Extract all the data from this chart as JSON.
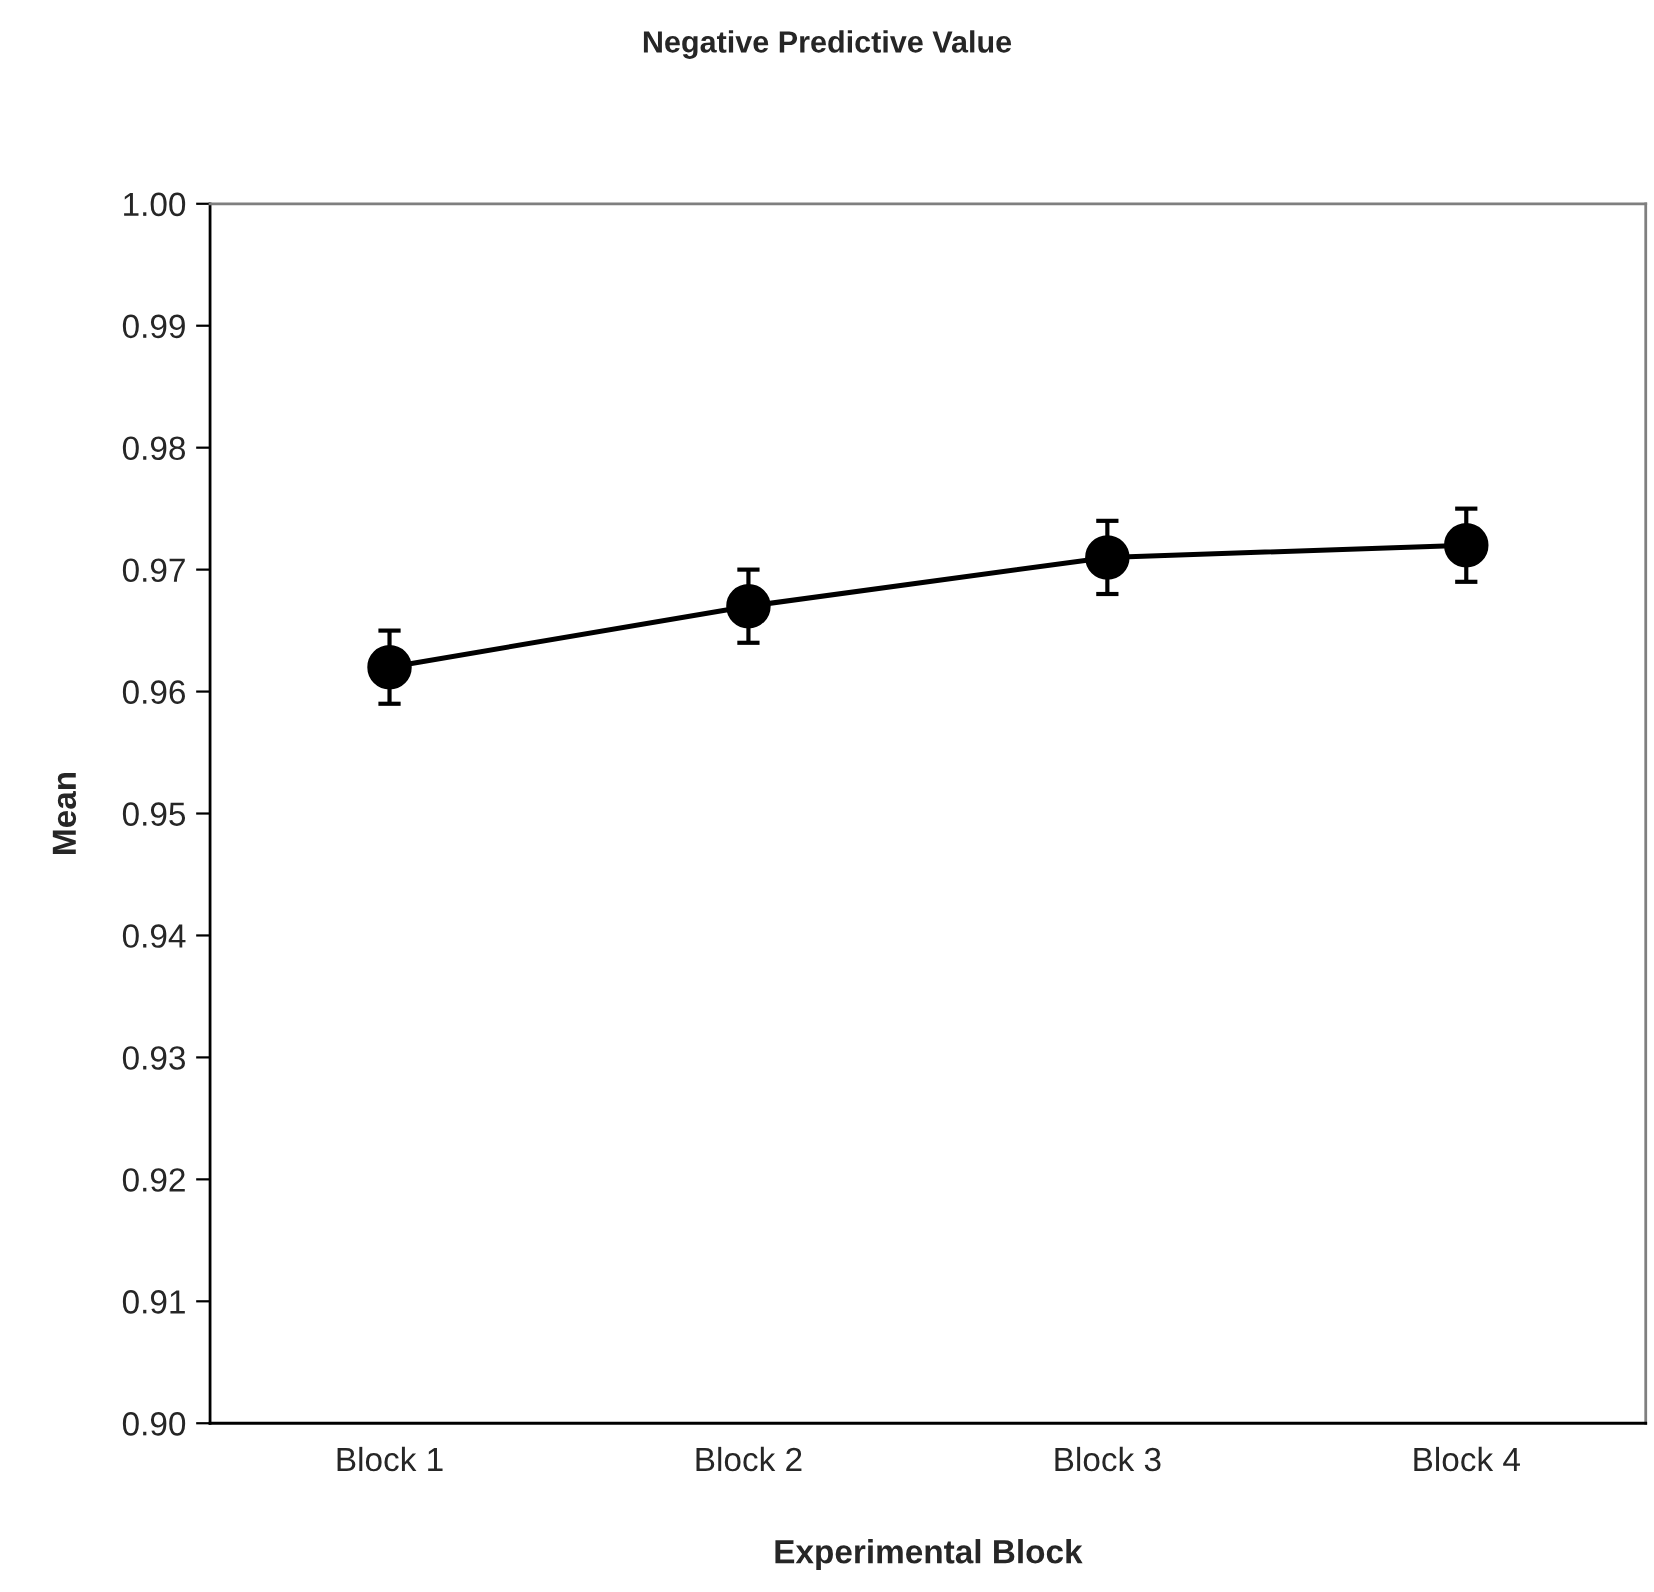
{
  "chart_data": {
    "type": "line",
    "title": "Negative Predictive Value",
    "xlabel": "Experimental Block",
    "ylabel": "Mean",
    "categories": [
      "Block 1",
      "Block 2",
      "Block 3",
      "Block 4"
    ],
    "series": [
      {
        "color": "#000000",
        "values": [
          0.962,
          0.967,
          0.971,
          0.972
        ],
        "errors": [
          0.003,
          0.003,
          0.003,
          0.003
        ]
      }
    ],
    "ylim": [
      0.9,
      1.0
    ],
    "yticks": [
      {
        "value": 0.9,
        "label": "0.90"
      },
      {
        "value": 0.91,
        "label": "0.91"
      },
      {
        "value": 0.92,
        "label": "0.92"
      },
      {
        "value": 0.93,
        "label": "0.93"
      },
      {
        "value": 0.94,
        "label": "0.94"
      },
      {
        "value": 0.95,
        "label": "0.95"
      },
      {
        "value": 0.96,
        "label": "0.96"
      },
      {
        "value": 0.97,
        "label": "0.97"
      },
      {
        "value": 0.98,
        "label": "0.98"
      },
      {
        "value": 0.99,
        "label": "0.99"
      },
      {
        "value": 1.0,
        "label": "1.00"
      }
    ],
    "marker": "circle",
    "line_style": "solid",
    "grid": false,
    "legend": false
  }
}
